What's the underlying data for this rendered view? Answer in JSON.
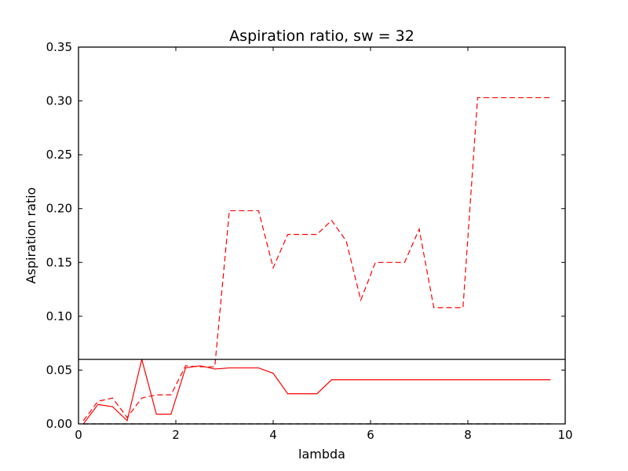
{
  "chart_data": {
    "type": "line",
    "title": "Aspiration ratio, sw = 32",
    "xlabel": "lambda",
    "ylabel": "Aspiration ratio",
    "xlim": [
      0,
      10
    ],
    "ylim": [
      0,
      0.35
    ],
    "xticks": [
      "0",
      "2",
      "4",
      "6",
      "8",
      "10"
    ],
    "yticks": [
      "0.00",
      "0.05",
      "0.10",
      "0.15",
      "0.20",
      "0.25",
      "0.30",
      "0.35"
    ],
    "colors": {
      "series": "#ff0000",
      "axis": "#000000",
      "divider": "#000000"
    },
    "divider_y": 0.06,
    "grid": false,
    "legend": "none",
    "series": [
      {
        "style": "dashed",
        "x": [
          0.1,
          0.4,
          0.7,
          1.0,
          1.3,
          1.6,
          1.9,
          2.2,
          2.5,
          2.8,
          3.1,
          3.4,
          3.7,
          4.0,
          4.3,
          4.6,
          4.9,
          5.2,
          5.5,
          5.8,
          6.1,
          6.4,
          6.7,
          7.0,
          7.3,
          7.6,
          7.9,
          8.2,
          8.5,
          8.8,
          9.1,
          9.4,
          9.7
        ],
        "y": [
          0.003,
          0.021,
          0.024,
          0.006,
          0.024,
          0.027,
          0.027,
          0.054,
          0.053,
          0.053,
          0.198,
          0.198,
          0.198,
          0.145,
          0.176,
          0.176,
          0.176,
          0.189,
          0.17,
          0.115,
          0.15,
          0.15,
          0.15,
          0.181,
          0.108,
          0.108,
          0.108,
          0.303,
          0.303,
          0.303,
          0.303,
          0.303,
          0.303
        ]
      },
      {
        "style": "solid",
        "x": [
          0.1,
          0.4,
          0.7,
          1.0,
          1.3,
          1.6,
          1.9,
          2.2,
          2.5,
          2.8,
          3.1,
          3.4,
          3.7,
          4.0,
          4.3,
          4.6,
          4.9,
          5.2,
          5.5,
          5.8,
          6.1,
          6.4,
          6.7,
          7.0,
          7.3,
          7.6,
          7.9,
          8.2,
          8.5,
          8.8,
          9.1,
          9.4,
          9.7
        ],
        "y": [
          0.0,
          0.018,
          0.016,
          0.003,
          0.06,
          0.009,
          0.009,
          0.052,
          0.054,
          0.051,
          0.052,
          0.052,
          0.052,
          0.047,
          0.028,
          0.028,
          0.028,
          0.041,
          0.041,
          0.041,
          0.041,
          0.041,
          0.041,
          0.041,
          0.041,
          0.041,
          0.041,
          0.041,
          0.041,
          0.041,
          0.041,
          0.041,
          0.041
        ]
      },
      {
        "style": "dashed-black",
        "x": [
          0.1,
          9.7
        ],
        "y": [
          0.0,
          0.0
        ]
      }
    ]
  }
}
